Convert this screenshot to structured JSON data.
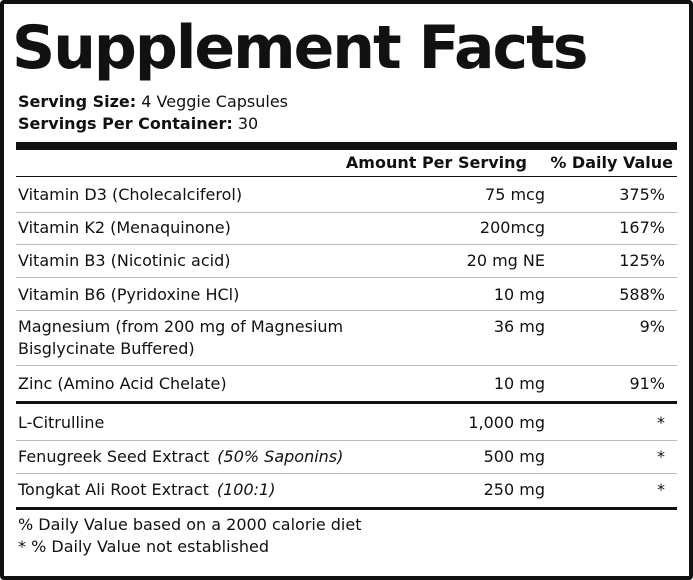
{
  "title": "Supplement Facts",
  "serving": {
    "size_label": "Serving Size:",
    "size_value": "4 Veggie Capsules",
    "per_container_label": "Servings Per Container:",
    "per_container_value": "30"
  },
  "header": {
    "amount": "Amount Per Serving",
    "daily_value": "% Daily Value"
  },
  "nutrients": [
    {
      "name": "Vitamin D3 (Cholecalciferol)",
      "amount": "75 mcg",
      "dv": "375%"
    },
    {
      "name": "Vitamin K2 (Menaquinone)",
      "amount": "200mcg",
      "dv": "167%"
    },
    {
      "name": "Vitamin B3 (Nicotinic acid)",
      "amount": "20 mg NE",
      "dv": "125%"
    },
    {
      "name": "Vitamin B6 (Pyridoxine HCl)",
      "amount": "10 mg",
      "dv": "588%"
    },
    {
      "name_line1": "Magnesium (from 200 mg of Magnesium",
      "name_line2": "Bisglycinate Buffered)",
      "amount": "36 mg",
      "dv": "9%"
    },
    {
      "name": "Zinc (Amino Acid Chelate)",
      "amount": "10 mg",
      "dv": "91%"
    }
  ],
  "ingredients": [
    {
      "name": "L-Citrulline",
      "note": "",
      "amount": "1,000 mg",
      "dv": "*"
    },
    {
      "name": "Fenugreek Seed Extract",
      "note": "(50% Saponins)",
      "amount": "500 mg",
      "dv": "*"
    },
    {
      "name": "Tongkat Ali Root Extract",
      "note": "(100:1)",
      "amount": "250 mg",
      "dv": "*"
    }
  ],
  "footnotes": {
    "line1": "% Daily Value based on a 2000 calorie diet",
    "line2": "* % Daily Value not established"
  }
}
